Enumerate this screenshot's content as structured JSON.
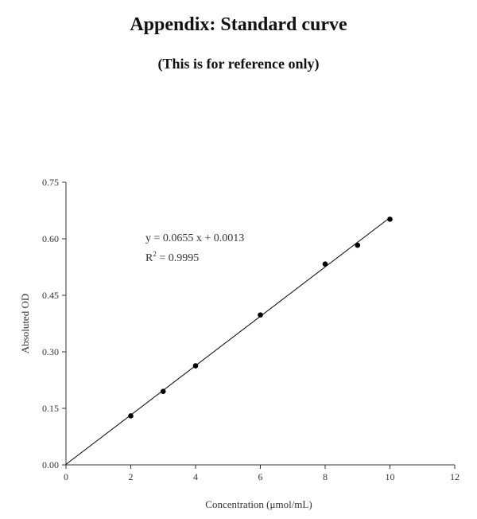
{
  "header": {
    "title": "Appendix: Standard curve",
    "subtitle": "(This is for reference only)"
  },
  "chart_data": {
    "type": "scatter",
    "title": "Appendix: Standard curve",
    "subtitle": "(This is for reference only)",
    "xlabel": "Concentration (μmol/mL)",
    "ylabel": "Absoluted OD",
    "xlim": [
      0,
      12
    ],
    "ylim": [
      0,
      0.75
    ],
    "x_ticks": [
      0,
      2,
      4,
      6,
      8,
      10,
      12
    ],
    "y_ticks": [
      "0.00",
      "0.15",
      "0.30",
      "0.45",
      "0.60",
      "0.75"
    ],
    "grid": false,
    "series": [
      {
        "x": [
          2,
          3,
          4,
          6,
          8,
          9,
          10
        ],
        "y": [
          0.13,
          0.195,
          0.263,
          0.398,
          0.533,
          0.583,
          0.652
        ]
      }
    ],
    "trendline": {
      "slope": 0.0655,
      "intercept": 0.0013,
      "x_range": [
        0,
        10
      ],
      "equation": "y = 0.0655 x + 0.0013",
      "r2_label": "R",
      "r2_sup": "2",
      "r2_value": " = 0.9995"
    },
    "colors": {
      "marks": "#000000",
      "axis": "#333333"
    }
  }
}
